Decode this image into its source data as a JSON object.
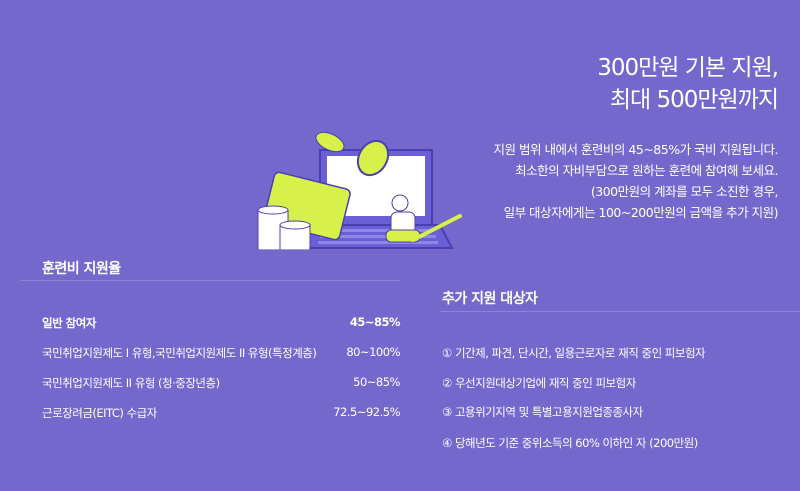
{
  "hero": {
    "title_lines": [
      "300만원 기본 지원,",
      "최대 500만원까지"
    ],
    "description_lines": [
      "지원 범위 내에서 훈련비의 45~85%가 국비 지원됩니다.",
      "최소한의 자비부담으로 원하는 훈련에 참여해 보세요.",
      "(300만원의 계좌를 모두 소진한 경우,",
      "일부 대상자에게는 100~200만원의 금액을 추가 지원)"
    ]
  },
  "support_rate": {
    "heading": "훈련비 지원율",
    "rows": [
      {
        "label": "일반 참여자",
        "value": "45~85%"
      },
      {
        "label": "국민취업지원제도 I 유형,국민취업지원제도 II 유형(특정계층)",
        "value": "80~100%"
      },
      {
        "label": "국민취업지원제도 II 유형 (청·중장년층)",
        "value": "50~85%"
      },
      {
        "label": "근로장려금(EITC) 수급자",
        "value": "72.5~92.5%"
      }
    ]
  },
  "additional": {
    "heading": "추가 지원 대상자",
    "items": [
      "① 기간제, 파견, 단시간, 일용근로자로 재직 중인 피보험자",
      "② 우선지원대상기업에 재직 중인 피보험자",
      "③ 고용위기지역 및 특별고용지원업종종사자",
      "④ 당해년도 기준 중위소득의 60% 이하인 자 (200만원)"
    ]
  },
  "colors": {
    "background": "#7568cc",
    "accent": "#d8f04a",
    "outline": "#4b3fb0"
  },
  "illustration": {
    "icons": [
      "laptop-icon",
      "credit-card-icon",
      "coin-stack-icon",
      "coin-icon",
      "person-reading-icon",
      "pencil-icon"
    ]
  }
}
